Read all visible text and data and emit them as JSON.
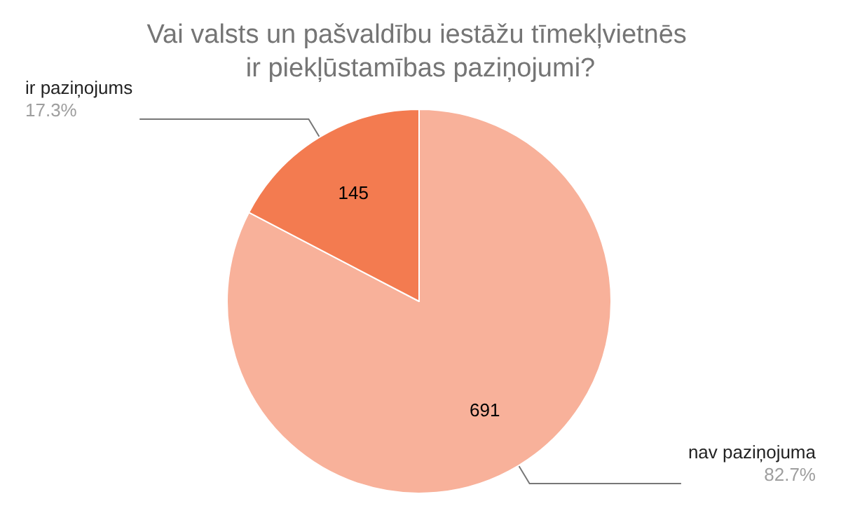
{
  "chart_data": {
    "type": "pie",
    "title": "Vai valsts un pašvaldību iestāžu tīmekļvietnēs ir piekļūstamības paziņojumi?",
    "categories": [
      "nav paziņojuma",
      "ir paziņojums"
    ],
    "values": [
      691,
      145
    ],
    "colors": [
      "#f8b19a",
      "#f37b50"
    ],
    "data_labels": true,
    "annotations": [
      "82.7%",
      "17.3%"
    ],
    "legend": false
  }
}
